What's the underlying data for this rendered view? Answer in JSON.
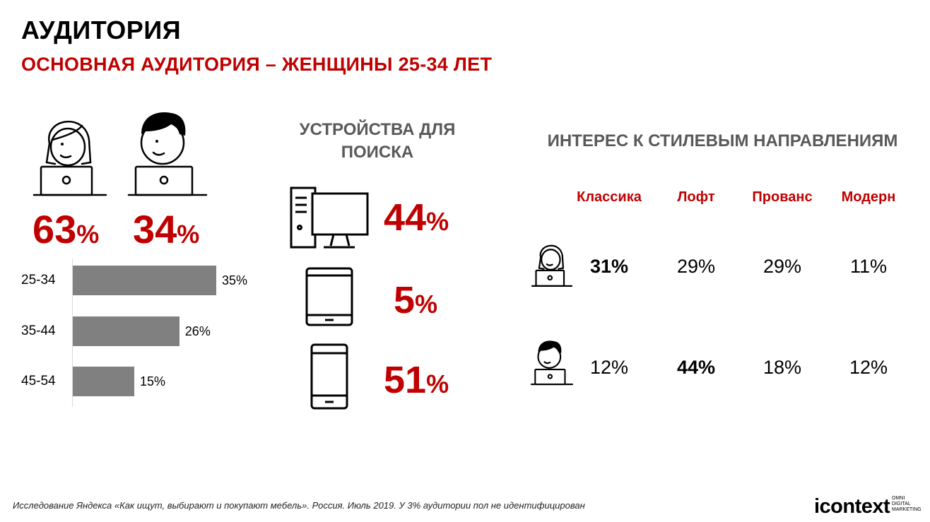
{
  "header": {
    "title": "АУДИТОРИЯ",
    "subtitle": "ОСНОВНАЯ АУДИТОРИЯ – ЖЕНЩИНЫ 25-34 ЛЕТ"
  },
  "gender": {
    "female": {
      "value": "63",
      "sign": "%",
      "icon": "woman-at-laptop-icon"
    },
    "male": {
      "value": "34",
      "sign": "%",
      "icon": "man-at-laptop-icon"
    }
  },
  "chart_data": {
    "type": "bar",
    "orientation": "horizontal",
    "categories": [
      "25-34",
      "35-44",
      "45-54"
    ],
    "values": [
      35,
      26,
      15
    ],
    "value_labels": [
      "35%",
      "26%",
      "15%"
    ],
    "unit": "%",
    "xlim": [
      0,
      40
    ]
  },
  "devices": {
    "heading": "УСТРОЙСТВА ДЛЯ ПОИСКА",
    "items": [
      {
        "icon": "desktop-computer-icon",
        "value": "44",
        "sign": "%"
      },
      {
        "icon": "tablet-icon",
        "value": "5",
        "sign": "%"
      },
      {
        "icon": "smartphone-icon",
        "value": "51",
        "sign": "%"
      }
    ]
  },
  "styles": {
    "heading": "ИНТЕРЕС К СТИЛЕВЫМ НАПРАВЛЕНИЯМ",
    "columns": [
      "Классика",
      "Лофт",
      "Прованс",
      "Модерн"
    ],
    "rows": [
      {
        "icon": "woman-at-laptop-icon",
        "values": [
          "31%",
          "29%",
          "29%",
          "11%"
        ],
        "highlight": 0
      },
      {
        "icon": "man-at-laptop-icon",
        "values": [
          "12%",
          "44%",
          "18%",
          "12%"
        ],
        "highlight": 1
      }
    ]
  },
  "footer": {
    "note": "Исследование Яндекса «Как ищут, выбирают и покупают мебель».  Россия. Июль 2019. У 3% аудитории пол не идентифицирован",
    "logo": "icontext",
    "logo_tagline": [
      "OMNI",
      "DIGITAL",
      "MARKETING"
    ]
  },
  "colors": {
    "accent": "#c00000",
    "bar": "#808080",
    "heading_gray": "#595959"
  }
}
